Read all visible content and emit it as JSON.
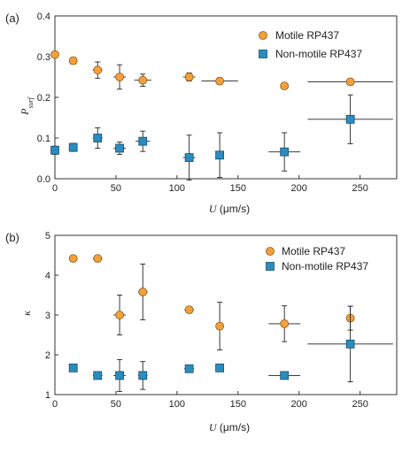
{
  "chart_data": [
    {
      "panel_label": "(a)",
      "type": "scatter",
      "xlabel_symbol": "U",
      "xlabel_units": " (μm/s)",
      "ylabel_symbol": "P",
      "ylabel_sub": "surf",
      "xlim": [
        0,
        280
      ],
      "ylim": [
        0,
        0.4
      ],
      "xticks": [
        0,
        50,
        100,
        150,
        200,
        250
      ],
      "yticks": [
        0.0,
        0.1,
        0.2,
        0.3,
        0.4
      ],
      "ytick_labels": [
        "0.0",
        "0.1",
        "0.2",
        "0.3",
        "0.4"
      ],
      "legend_position": "top-right",
      "series": [
        {
          "name": "Motile RP437",
          "marker": "circle",
          "color": "#f4a03a",
          "points": [
            {
              "x": 0,
              "y": 0.305,
              "xerr": 2,
              "yerr": 0.005
            },
            {
              "x": 15,
              "y": 0.29,
              "xerr": 3,
              "yerr": 0.008
            },
            {
              "x": 35,
              "y": 0.267,
              "xerr": 4,
              "yerr": 0.02
            },
            {
              "x": 53,
              "y": 0.25,
              "xerr": 5,
              "yerr": 0.03
            },
            {
              "x": 72,
              "y": 0.242,
              "xerr": 7,
              "yerr": 0.015
            },
            {
              "x": 110,
              "y": 0.25,
              "xerr": 5,
              "yerr": 0.01
            },
            {
              "x": 135,
              "y": 0.24,
              "xerr": 15,
              "yerr": 0.008
            },
            {
              "x": 188,
              "y": 0.228,
              "xerr": 3,
              "yerr": 0.003
            },
            {
              "x": 242,
              "y": 0.238,
              "xerr": 35,
              "yerr": 0.004
            }
          ]
        },
        {
          "name": "Non-motile RP437",
          "marker": "square",
          "color": "#2b8cbe",
          "points": [
            {
              "x": 0,
              "y": 0.07,
              "xerr": 2,
              "yerr": 0.01
            },
            {
              "x": 15,
              "y": 0.077,
              "xerr": 3,
              "yerr": 0.01
            },
            {
              "x": 35,
              "y": 0.1,
              "xerr": 4,
              "yerr": 0.025
            },
            {
              "x": 53,
              "y": 0.075,
              "xerr": 5,
              "yerr": 0.015
            },
            {
              "x": 72,
              "y": 0.092,
              "xerr": 6,
              "yerr": 0.025
            },
            {
              "x": 110,
              "y": 0.052,
              "xerr": 5,
              "yerr": 0.055
            },
            {
              "x": 135,
              "y": 0.058,
              "xerr": 3,
              "yerr": 0.055
            },
            {
              "x": 188,
              "y": 0.066,
              "xerr": 13,
              "yerr": 0.047
            },
            {
              "x": 242,
              "y": 0.146,
              "xerr": 35,
              "yerr": 0.06
            }
          ]
        }
      ]
    },
    {
      "panel_label": "(b)",
      "type": "scatter",
      "xlabel_symbol": "U",
      "xlabel_units": " (μm/s)",
      "ylabel_symbol": "κ",
      "ylabel_sub": "",
      "xlim": [
        0,
        280
      ],
      "ylim": [
        1,
        5
      ],
      "xticks": [
        0,
        50,
        100,
        150,
        200,
        250
      ],
      "yticks": [
        1,
        2,
        3,
        4,
        5
      ],
      "ytick_labels": [
        "1",
        "2",
        "3",
        "4",
        "5"
      ],
      "legend_position": "top-right",
      "series": [
        {
          "name": "Motile RP437",
          "marker": "circle",
          "color": "#f4a03a",
          "points": [
            {
              "x": 15,
              "y": 4.42,
              "xerr": 3,
              "yerr": 0.05
            },
            {
              "x": 35,
              "y": 4.42,
              "xerr": 4,
              "yerr": 0.05
            },
            {
              "x": 53,
              "y": 3.0,
              "xerr": 5,
              "yerr": 0.5
            },
            {
              "x": 72,
              "y": 3.58,
              "xerr": 4,
              "yerr": 0.7
            },
            {
              "x": 110,
              "y": 3.13,
              "xerr": 4,
              "yerr": 0.08
            },
            {
              "x": 135,
              "y": 2.72,
              "xerr": 3,
              "yerr": 0.6
            },
            {
              "x": 188,
              "y": 2.78,
              "xerr": 13,
              "yerr": 0.45
            },
            {
              "x": 242,
              "y": 2.92,
              "xerr": 3,
              "yerr": 0.3
            }
          ]
        },
        {
          "name": "Non-motile RP437",
          "marker": "square",
          "color": "#2b8cbe",
          "points": [
            {
              "x": 15,
              "y": 1.67,
              "xerr": 3,
              "yerr": 0.05
            },
            {
              "x": 35,
              "y": 1.48,
              "xerr": 4,
              "yerr": 0.05
            },
            {
              "x": 53,
              "y": 1.48,
              "xerr": 5,
              "yerr": 0.4
            },
            {
              "x": 72,
              "y": 1.48,
              "xerr": 4,
              "yerr": 0.35
            },
            {
              "x": 110,
              "y": 1.65,
              "xerr": 4,
              "yerr": 0.05
            },
            {
              "x": 135,
              "y": 1.67,
              "xerr": 3,
              "yerr": 0.05
            },
            {
              "x": 188,
              "y": 1.48,
              "xerr": 13,
              "yerr": 0.03
            },
            {
              "x": 242,
              "y": 2.27,
              "xerr": 35,
              "yerr": 0.95
            }
          ]
        }
      ]
    }
  ]
}
